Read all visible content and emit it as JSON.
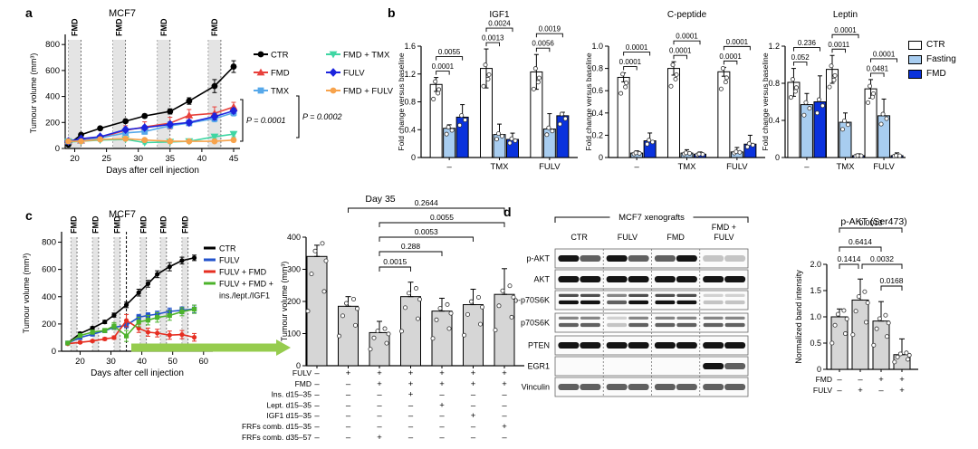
{
  "colors": {
    "bar_series": [
      "#ffffff",
      "#a8cdf0",
      "#0a32dd"
    ],
    "gray_bar": "#d6d6d6",
    "band_gray": "#e4e4e4",
    "arrow_green": "#96cc4e"
  },
  "panel_a": {
    "label": "a",
    "pvalues": [
      "P = 0.0001",
      "P = 0.0002"
    ]
  },
  "panel_b": {
    "label": "b",
    "ylabel": "Fold change versus baseline",
    "legend": [
      {
        "label": "CTR",
        "color": "#ffffff"
      },
      {
        "label": "Fasting",
        "color": "#a8cdf0"
      },
      {
        "label": "FMD",
        "color": "#0a32dd"
      }
    ]
  },
  "panel_c": {
    "label": "c"
  },
  "panel_d": {
    "label": "d",
    "blot": {
      "header": "MCF7 xenografts",
      "groups": [
        "CTR",
        "FULV",
        "FMD",
        {
          "lines": [
            "FMD +",
            "FULV"
          ]
        }
      ],
      "rows": [
        {
          "name": "p-AKT",
          "double": false,
          "bands": [
            3,
            2,
            3,
            2,
            2,
            3,
            1,
            1
          ]
        },
        {
          "name": "AKT",
          "double": false,
          "bands": [
            3,
            3,
            3,
            3,
            3,
            3,
            3,
            3
          ]
        },
        {
          "name": "p-p70S6K",
          "double": true,
          "bands": [
            3,
            3,
            2,
            3,
            3,
            3,
            1,
            1
          ]
        },
        {
          "name": "p70S6K",
          "double": true,
          "bands": [
            2,
            2,
            1,
            2,
            2,
            2,
            2,
            2
          ]
        },
        {
          "name": "PTEN",
          "double": false,
          "bands": [
            3,
            3,
            3,
            3,
            3,
            3,
            3,
            3
          ]
        },
        {
          "name": "EGR1",
          "double": false,
          "bands": [
            0,
            0,
            0,
            0,
            0,
            0,
            3,
            2
          ]
        },
        {
          "name": "Vinculin",
          "double": false,
          "bands": [
            2,
            2,
            2,
            2,
            2,
            2,
            2,
            2
          ]
        }
      ]
    }
  },
  "chart_data": [
    {
      "type": "line",
      "title": "MCF7",
      "xlabel": "Days after cell injection",
      "ylabel": "Tumour volume (mm³)",
      "band_label": "FMD",
      "xlim": [
        18.5,
        46
      ],
      "ylim": [
        0,
        850
      ],
      "xticks": [
        20,
        25,
        30,
        35,
        40,
        45
      ],
      "yticks": [
        0,
        200,
        400,
        600,
        800
      ],
      "fmd_bands": [
        [
          19,
          21
        ],
        [
          26,
          28
        ],
        [
          33,
          35
        ],
        [
          41,
          43
        ]
      ],
      "x": [
        19,
        21,
        24,
        28,
        31,
        35,
        38,
        42,
        45
      ],
      "series": [
        {
          "name": "CTR",
          "marker": "circle",
          "color": "#000000",
          "values": [
            30,
            105,
            155,
            210,
            250,
            285,
            365,
            480,
            630
          ],
          "err": [
            0,
            0,
            10,
            12,
            15,
            20,
            25,
            50,
            45
          ]
        },
        {
          "name": "FMD",
          "marker": "triangle",
          "color": "#e8413c",
          "values": [
            55,
            62,
            85,
            140,
            165,
            195,
            255,
            270,
            320
          ],
          "err": [
            0,
            0,
            15,
            35,
            40,
            45,
            45,
            50,
            35
          ]
        },
        {
          "name": "TMX",
          "marker": "square",
          "color": "#56a8ea",
          "values": [
            55,
            60,
            80,
            120,
            130,
            175,
            195,
            230,
            275
          ],
          "err": [
            0,
            0,
            10,
            15,
            20,
            20,
            20,
            25,
            25
          ]
        },
        {
          "name": "FMD + TMX",
          "marker": "tri-down",
          "color": "#3fd6a3",
          "values": [
            50,
            55,
            65,
            70,
            45,
            50,
            55,
            90,
            110
          ],
          "err": [
            0,
            0,
            10,
            10,
            10,
            10,
            10,
            15,
            20
          ]
        },
        {
          "name": "FULV",
          "marker": "diamond",
          "color": "#1c24dd",
          "values": [
            55,
            75,
            90,
            145,
            160,
            185,
            200,
            245,
            290
          ],
          "err": [
            0,
            0,
            10,
            15,
            15,
            20,
            20,
            25,
            20
          ]
        },
        {
          "name": "FMD + FULV",
          "marker": "circle",
          "color": "#f7a34c",
          "values": [
            55,
            55,
            70,
            75,
            65,
            55,
            55,
            55,
            65
          ],
          "err": [
            0,
            0,
            8,
            10,
            10,
            8,
            8,
            8,
            10
          ]
        }
      ]
    },
    {
      "type": "bar",
      "title": "IGF1",
      "ylim": [
        0,
        1.6
      ],
      "yticks": [
        "0",
        "0.4",
        "0.8",
        "1.2",
        "1.6"
      ],
      "categories": [
        "–",
        "TMX",
        "FULV"
      ],
      "series": [
        {
          "name": "CTR",
          "values": [
            1.05,
            1.28,
            1.23
          ],
          "err": [
            0.1,
            0.28,
            0.25
          ]
        },
        {
          "name": "Fasting",
          "values": [
            0.42,
            0.33,
            0.41
          ],
          "err": [
            0.05,
            0.15,
            0.22
          ]
        },
        {
          "name": "FMD",
          "values": [
            0.58,
            0.26,
            0.6
          ],
          "err": [
            0.18,
            0.09,
            0.05
          ]
        }
      ],
      "sig_inner": [
        "0.0001",
        "0.0013",
        "0.0056"
      ],
      "sig_outer": [
        "0.0055",
        "0.0024",
        "0.0019"
      ]
    },
    {
      "type": "bar",
      "title": "C-peptide",
      "ylim": [
        0,
        1.0
      ],
      "yticks": [
        "0",
        "0.2",
        "0.4",
        "0.6",
        "0.8",
        "1.0"
      ],
      "categories": [
        "–",
        "TMX",
        "FULV"
      ],
      "series": [
        {
          "name": "CTR",
          "values": [
            0.72,
            0.8,
            0.77
          ],
          "err": [
            0.04,
            0.06,
            0.04
          ]
        },
        {
          "name": "Fasting",
          "values": [
            0.04,
            0.04,
            0.05
          ],
          "err": [
            0.02,
            0.03,
            0.04
          ]
        },
        {
          "name": "FMD",
          "values": [
            0.15,
            0.03,
            0.12
          ],
          "err": [
            0.07,
            0.02,
            0.08
          ]
        }
      ],
      "sig_inner": [
        "0.0001",
        "0.0001",
        "0.0001"
      ],
      "sig_outer": [
        "0.0001",
        "0.0001",
        "0.0001"
      ]
    },
    {
      "type": "bar",
      "title": "Leptin",
      "ylim": [
        0,
        1.2
      ],
      "yticks": [
        "0",
        "0.4",
        "0.8",
        "1.2"
      ],
      "categories": [
        "–",
        "TMX",
        "FULV"
      ],
      "series": [
        {
          "name": "CTR",
          "values": [
            0.81,
            0.95,
            0.74
          ],
          "err": [
            0.15,
            0.15,
            0.1
          ]
        },
        {
          "name": "Fasting",
          "values": [
            0.57,
            0.38,
            0.45
          ],
          "err": [
            0.12,
            0.1,
            0.18
          ]
        },
        {
          "name": "FMD",
          "values": [
            0.6,
            0.02,
            0.02
          ],
          "err": [
            0.28,
            0.02,
            0.03
          ]
        }
      ],
      "sig_inner": [
        "0.052",
        "0.0011",
        "0.0481"
      ],
      "sig_outer": [
        "0.236",
        "0.0001",
        "0.0001"
      ]
    },
    {
      "type": "line",
      "title": "MCF7",
      "xlabel": "Days after cell injection",
      "ylabel": "Tumour volume (mm³)",
      "band_label": "FMD",
      "xlim": [
        14,
        63
      ],
      "ylim": [
        0,
        850
      ],
      "xticks": [
        20,
        30,
        40,
        50,
        60
      ],
      "yticks": [
        0,
        200,
        400,
        600,
        800
      ],
      "fmd_bands": [
        [
          17,
          19
        ],
        [
          24,
          26
        ],
        [
          31,
          33
        ],
        [
          39.5,
          41.5
        ],
        [
          46,
          48
        ],
        [
          53,
          55
        ]
      ],
      "dashed_vline": 35,
      "x": [
        16,
        20,
        24,
        28,
        31,
        35,
        39,
        42,
        45,
        49,
        53,
        57
      ],
      "series": [
        {
          "name": "CTR",
          "marker": "circle",
          "color": "#000000",
          "values": [
            60,
            130,
            170,
            215,
            265,
            340,
            430,
            495,
            565,
            620,
            665,
            685
          ],
          "err": [
            0,
            10,
            10,
            12,
            15,
            20,
            25,
            25,
            25,
            30,
            25,
            20
          ]
        },
        {
          "name": "FULV",
          "marker": "square",
          "color": "#2353cc",
          "values": [
            60,
            100,
            125,
            150,
            175,
            190,
            250,
            262,
            272,
            292,
            300,
            310
          ],
          "err": [
            0,
            8,
            10,
            12,
            15,
            18,
            20,
            20,
            22,
            25,
            25,
            28
          ]
        },
        {
          "name": "FULV + FMD",
          "marker": "circle",
          "color": "#e62e21",
          "values": [
            55,
            65,
            75,
            90,
            100,
            225,
            168,
            140,
            133,
            118,
            122,
            102
          ],
          "err": [
            0,
            8,
            8,
            10,
            12,
            45,
            30,
            30,
            28,
            30,
            30,
            28
          ]
        },
        {
          "name": "FULV + FMD + ins./lept./IGF1",
          "legend": "FULV + FMD +",
          "legend2": "ins./lept./IGF1",
          "marker": "square",
          "color": "#4cb32b",
          "values": [
            60,
            115,
            140,
            152,
            185,
            112,
            215,
            228,
            248,
            262,
            290,
            308
          ],
          "err": [
            0,
            12,
            15,
            15,
            25,
            40,
            35,
            35,
            35,
            35,
            30,
            30
          ]
        }
      ]
    },
    {
      "type": "bar",
      "title": "Day 35",
      "ylabel": "Tumour volume (mm³)",
      "ylim": [
        0,
        400
      ],
      "yticks": [
        "0",
        "100",
        "200",
        "300",
        "400"
      ],
      "values": [
        340,
        185,
        103,
        215,
        170,
        190,
        222
      ],
      "err": [
        35,
        30,
        35,
        45,
        40,
        48,
        80
      ],
      "sig": [
        {
          "pair": [
            2,
            3
          ],
          "p": "0.0015"
        },
        {
          "pair": [
            2,
            4
          ],
          "p": "0.288"
        },
        {
          "pair": [
            2,
            5
          ],
          "p": "0.0053"
        },
        {
          "pair": [
            2,
            6
          ],
          "p": "0.0055"
        },
        {
          "pair": [
            1,
            6
          ],
          "p": "0.2644"
        }
      ],
      "dose_rows": [
        {
          "label": "FULV",
          "signs": [
            "–",
            "+",
            "+",
            "+",
            "+",
            "+",
            "+"
          ]
        },
        {
          "label": "FMD",
          "signs": [
            "–",
            "–",
            "+",
            "+",
            "+",
            "+",
            "+"
          ]
        },
        {
          "label": "Ins. d15–35",
          "signs": [
            "–",
            "–",
            "–",
            "+",
            "–",
            "–",
            "–"
          ]
        },
        {
          "label": "Lept. d15–35",
          "signs": [
            "–",
            "–",
            "–",
            "–",
            "+",
            "–",
            "–"
          ]
        },
        {
          "label": "IGF1 d15–35",
          "signs": [
            "–",
            "–",
            "–",
            "–",
            "–",
            "+",
            "–"
          ]
        },
        {
          "label": "FRFs comb. d15–35",
          "signs": [
            "–",
            "–",
            "–",
            "–",
            "–",
            "–",
            "+"
          ]
        },
        {
          "label": "FRFs comb. d35–57",
          "signs": [
            "–",
            "–",
            "+",
            "–",
            "–",
            "–",
            "–"
          ]
        }
      ]
    },
    {
      "type": "bar",
      "title": "p-AKT (Ser473)",
      "ylabel": "Normalized band intensity",
      "ylim": [
        0,
        2
      ],
      "yticks": [
        "0",
        "0.5",
        "1.0",
        "1.5",
        "2.0"
      ],
      "values": [
        1.0,
        1.32,
        0.92,
        0.28
      ],
      "err": [
        0.15,
        0.4,
        0.37,
        0.3
      ],
      "sig": [
        {
          "pair": [
            0,
            3
          ],
          "p": "0.0013"
        },
        {
          "pair": [
            0,
            2
          ],
          "p": "0.6414"
        },
        {
          "pair": [
            0,
            1
          ],
          "p": "0.1414"
        },
        {
          "pair": [
            1,
            3
          ],
          "p": "0.0032"
        },
        {
          "pair": [
            2,
            3
          ],
          "p": "0.0168"
        }
      ],
      "dose_rows": [
        {
          "label": "FMD",
          "signs": [
            "–",
            "–",
            "+",
            "+"
          ]
        },
        {
          "label": "FULV",
          "signs": [
            "–",
            "+",
            "–",
            "+"
          ]
        }
      ]
    }
  ]
}
